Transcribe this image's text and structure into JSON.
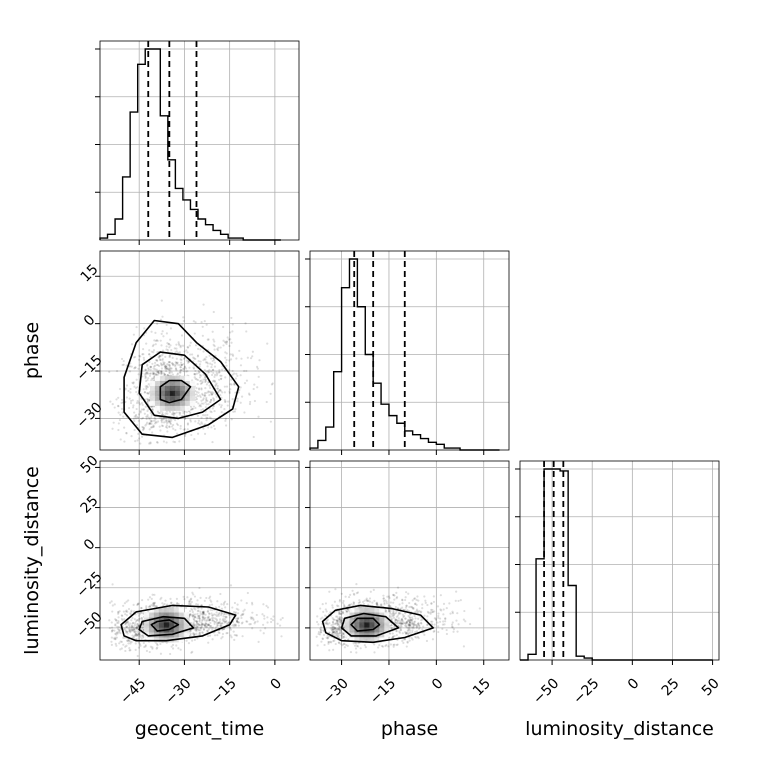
{
  "chart_data": {
    "type": "corner",
    "parameters": [
      "geocent_time",
      "phase",
      "luminosity_distance"
    ],
    "axis_labels": {
      "geocent_time": "geocent_time",
      "phase": "phase",
      "luminosity_distance": "luminosity_distance"
    },
    "ranges": {
      "geocent_time": [
        -58,
        8
      ],
      "phase": [
        -40,
        23
      ],
      "luminosity_distance": [
        -70,
        54
      ]
    },
    "ticks": {
      "geocent_time": [
        -45,
        -30,
        -15,
        0
      ],
      "phase": [
        -30,
        -15,
        0,
        15
      ],
      "luminosity_distance": [
        -50,
        -25,
        0,
        25,
        50
      ]
    },
    "quantiles": {
      "geocent_time": [
        -42,
        -35,
        -26
      ],
      "phase": [
        -26,
        -20,
        -10
      ],
      "luminosity_distance": [
        -55,
        -49,
        -43
      ]
    },
    "histograms": {
      "geocent_time": {
        "edges": [
          -58,
          -55.5,
          -53,
          -50.5,
          -48,
          -45.5,
          -43,
          -40.5,
          -38,
          -35.5,
          -33,
          -30.5,
          -28,
          -25.5,
          -23,
          -20.5,
          -18,
          -15.5,
          -13,
          -10.5,
          -8,
          -5.5,
          -3,
          -0.5,
          2
        ],
        "counts": [
          1,
          3,
          11,
          33,
          67,
          92,
          100,
          100,
          65,
          42,
          27,
          21,
          16,
          11,
          8,
          5,
          3,
          1,
          1,
          0,
          0,
          0,
          0,
          0
        ]
      },
      "phase": {
        "edges": [
          -40,
          -37.5,
          -35,
          -32.5,
          -30,
          -27.5,
          -25,
          -22.5,
          -20,
          -17.5,
          -15,
          -12.5,
          -10,
          -7.5,
          -5,
          -2.5,
          0,
          2.5,
          5,
          7.5,
          10,
          12.5,
          15,
          17.5,
          20
        ],
        "counts": [
          1,
          5,
          12,
          41,
          85,
          100,
          75,
          50,
          35,
          24,
          18,
          14,
          10,
          8,
          6,
          4,
          3,
          1,
          1,
          0,
          0,
          0,
          0,
          0
        ]
      },
      "luminosity_distance": {
        "edges": [
          -70,
          -65,
          -60,
          -55,
          -50,
          -45,
          -40,
          -35,
          -30,
          -25,
          -20,
          -15,
          -10,
          -5,
          0,
          5,
          10,
          15,
          20,
          25,
          30,
          35,
          40,
          45,
          50
        ],
        "counts": [
          0,
          3,
          53,
          100,
          100,
          99,
          39,
          2,
          1,
          0,
          0,
          0,
          0,
          0,
          0,
          0,
          0,
          0,
          0,
          0,
          0,
          0,
          0,
          0
        ]
      }
    },
    "joint": [
      {
        "x": "geocent_time",
        "y": "phase",
        "center": [
          -34,
          -22
        ],
        "spread": [
          8,
          7
        ],
        "scatter_extent": {
          "x": [
            -55,
            0
          ],
          "y": [
            -38,
            15
          ]
        },
        "contours": [
          [
            [
              -35,
              -25
            ],
            [
              -31,
              -24
            ],
            [
              -28,
              -20
            ],
            [
              -31,
              -18
            ],
            [
              -35,
              -18
            ],
            [
              -38,
              -20
            ],
            [
              -38,
              -24
            ]
          ],
          [
            [
              -40,
              -29
            ],
            [
              -32,
              -30
            ],
            [
              -24,
              -28
            ],
            [
              -18,
              -24
            ],
            [
              -23,
              -16
            ],
            [
              -30,
              -10
            ],
            [
              -38,
              -9
            ],
            [
              -44,
              -13
            ],
            [
              -45,
              -22
            ]
          ],
          [
            [
              -44,
              -35
            ],
            [
              -34,
              -36
            ],
            [
              -22,
              -32
            ],
            [
              -14,
              -27
            ],
            [
              -12,
              -20
            ],
            [
              -18,
              -12
            ],
            [
              -26,
              -6
            ],
            [
              -32,
              0
            ],
            [
              -40,
              1
            ],
            [
              -46,
              -6
            ],
            [
              -50,
              -17
            ],
            [
              -50,
              -28
            ]
          ]
        ]
      },
      {
        "x": "geocent_time",
        "y": "luminosity_distance",
        "center": [
          -36,
          -48
        ],
        "spread": [
          9,
          6
        ],
        "scatter_extent": {
          "x": [
            -55,
            5
          ],
          "y": [
            -68,
            -20
          ]
        },
        "contours": [
          [
            [
              -39,
              -52
            ],
            [
              -35,
              -51
            ],
            [
              -32,
              -48
            ],
            [
              -35,
              -45
            ],
            [
              -39,
              -46
            ],
            [
              -41,
              -48
            ]
          ],
          [
            [
              -42,
              -55
            ],
            [
              -34,
              -54
            ],
            [
              -27,
              -50
            ],
            [
              -30,
              -44
            ],
            [
              -37,
              -43
            ],
            [
              -44,
              -46
            ],
            [
              -45,
              -51
            ]
          ],
          [
            [
              -46,
              -58
            ],
            [
              -36,
              -58
            ],
            [
              -24,
              -55
            ],
            [
              -15,
              -48
            ],
            [
              -13,
              -42
            ],
            [
              -22,
              -37
            ],
            [
              -34,
              -36
            ],
            [
              -46,
              -40
            ],
            [
              -51,
              -48
            ],
            [
              -50,
              -55
            ]
          ]
        ]
      },
      {
        "x": "phase",
        "y": "luminosity_distance",
        "center": [
          -22,
          -48
        ],
        "spread": [
          8,
          6
        ],
        "scatter_extent": {
          "x": [
            -38,
            15
          ],
          "y": [
            -68,
            -20
          ]
        },
        "contours": [
          [
            [
              -25,
              -52
            ],
            [
              -20,
              -51
            ],
            [
              -18,
              -48
            ],
            [
              -20,
              -44
            ],
            [
              -25,
              -44
            ],
            [
              -27,
              -48
            ]
          ],
          [
            [
              -27,
              -55
            ],
            [
              -19,
              -55
            ],
            [
              -12,
              -50
            ],
            [
              -16,
              -43
            ],
            [
              -23,
              -41
            ],
            [
              -29,
              -44
            ],
            [
              -30,
              -50
            ]
          ],
          [
            [
              -30,
              -58
            ],
            [
              -20,
              -59
            ],
            [
              -10,
              -56
            ],
            [
              -1,
              -50
            ],
            [
              -5,
              -42
            ],
            [
              -14,
              -38
            ],
            [
              -24,
              -36
            ],
            [
              -32,
              -39
            ],
            [
              -36,
              -46
            ],
            [
              -35,
              -53
            ]
          ]
        ]
      }
    ]
  }
}
